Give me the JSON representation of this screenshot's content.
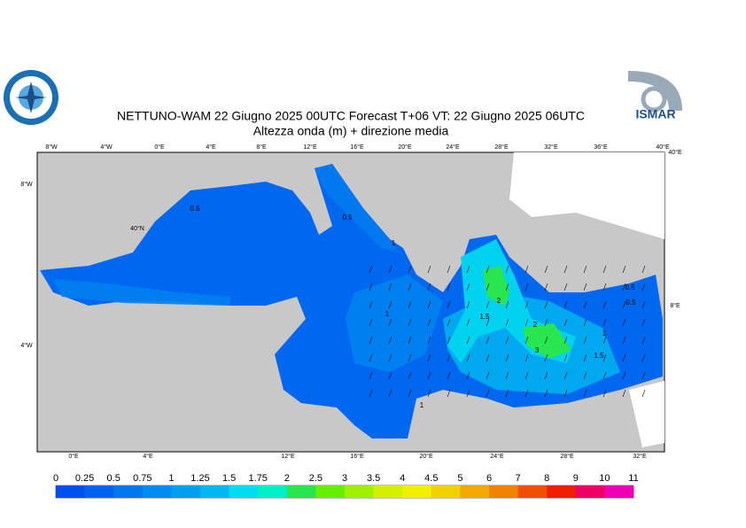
{
  "header": {
    "title": "NETTUNO-WAM  22   Giugno  2025 00UTC Forecast T+06 VT: 22   Giugno  2025 06UTC",
    "subtitle": "Altezza onda (m) + direzione media",
    "logo_text": "ISMAR"
  },
  "map": {
    "top_labels": [
      "8°W",
      "4°W",
      "0°E",
      "4°E",
      "8°E",
      "12°E",
      "16°E",
      "20°E",
      "24°E",
      "28°E",
      "32°E",
      "36°E",
      "40°E"
    ],
    "bottom_labels": [
      "0°E",
      "4°E",
      "12°E",
      "16°E",
      "20°E",
      "24°E",
      "28°E",
      "32°E"
    ],
    "left_labels": [
      "8°W",
      "40°N",
      "4°W"
    ],
    "right_labels": [
      "40°E",
      "8°E"
    ],
    "contour_labels": [
      "0.5",
      "0.5",
      "1",
      "1",
      "1.5",
      "2",
      "2",
      "3",
      "1",
      "1.5",
      "0.5",
      "0.5",
      "1"
    ]
  },
  "colorbar": {
    "ticks": [
      0,
      0.25,
      0.5,
      0.75,
      1,
      1.25,
      1.5,
      1.75,
      2,
      2.5,
      3,
      3.5,
      4,
      4.5,
      5,
      6,
      7,
      8,
      9,
      10,
      11
    ],
    "colors": [
      "#0050f0",
      "#0064f0",
      "#0078f0",
      "#008cf0",
      "#00a0f0",
      "#00b9f0",
      "#00dcf0",
      "#00f0c8",
      "#28e650",
      "#64f000",
      "#a0f000",
      "#d2f000",
      "#f0f000",
      "#f0d200",
      "#f0aa00",
      "#f08200",
      "#f05000",
      "#f01e00",
      "#f00064",
      "#f000b4"
    ]
  }
}
